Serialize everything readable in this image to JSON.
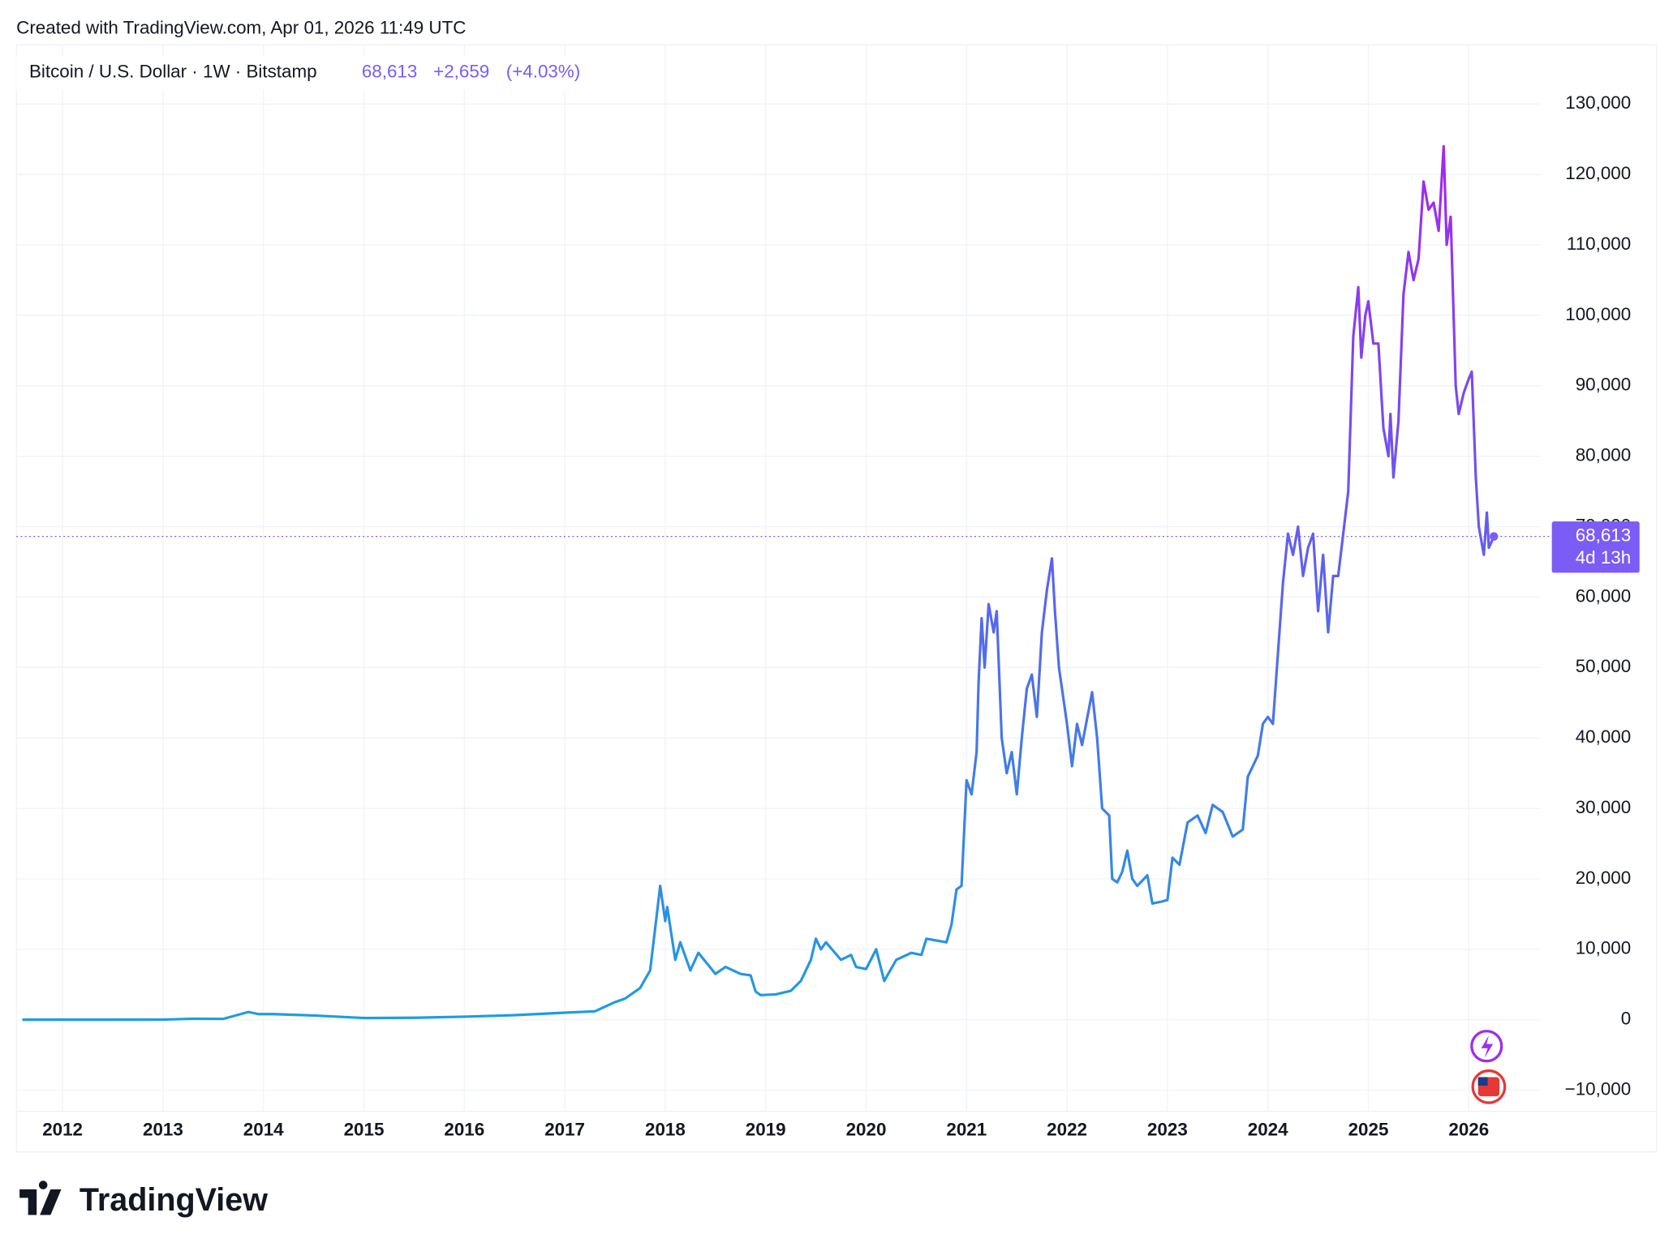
{
  "header": "Created with TradingView.com, Apr 01, 2026 11:49 UTC",
  "chart_data": {
    "type": "line",
    "title": "Bitcoin / U.S. Dollar · 1W · Bitstamp",
    "last_price": {
      "value": 68613,
      "label": "68,613"
    },
    "change": "+2,659",
    "change_percent": "(+4.03%)",
    "countdown": "4d 13h",
    "x": [
      2011.6,
      2012.0,
      2012.5,
      2013.0,
      2013.3,
      2013.6,
      2013.85,
      2013.95,
      2014.1,
      2014.5,
      2015.0,
      2015.5,
      2016.0,
      2016.5,
      2017.0,
      2017.3,
      2017.5,
      2017.6,
      2017.75,
      2017.85,
      2017.95,
      2018.0,
      2018.02,
      2018.1,
      2018.15,
      2018.25,
      2018.33,
      2018.5,
      2018.6,
      2018.75,
      2018.85,
      2018.9,
      2018.95,
      2019.1,
      2019.25,
      2019.35,
      2019.45,
      2019.5,
      2019.55,
      2019.6,
      2019.75,
      2019.85,
      2019.9,
      2020.0,
      2020.1,
      2020.18,
      2020.3,
      2020.45,
      2020.55,
      2020.6,
      2020.8,
      2020.85,
      2020.9,
      2020.95,
      2021.0,
      2021.05,
      2021.1,
      2021.12,
      2021.15,
      2021.18,
      2021.22,
      2021.27,
      2021.3,
      2021.35,
      2021.4,
      2021.45,
      2021.5,
      2021.55,
      2021.6,
      2021.65,
      2021.7,
      2021.75,
      2021.8,
      2021.85,
      2021.88,
      2021.92,
      2021.95,
      2022.0,
      2022.05,
      2022.1,
      2022.15,
      2022.25,
      2022.3,
      2022.35,
      2022.42,
      2022.45,
      2022.5,
      2022.55,
      2022.6,
      2022.65,
      2022.7,
      2022.8,
      2022.85,
      2022.95,
      2023.0,
      2023.05,
      2023.12,
      2023.2,
      2023.3,
      2023.38,
      2023.45,
      2023.55,
      2023.65,
      2023.75,
      2023.8,
      2023.9,
      2023.95,
      2024.0,
      2024.05,
      2024.1,
      2024.15,
      2024.2,
      2024.25,
      2024.3,
      2024.35,
      2024.4,
      2024.45,
      2024.5,
      2024.55,
      2024.6,
      2024.65,
      2024.7,
      2024.75,
      2024.8,
      2024.85,
      2024.9,
      2024.93,
      2024.97,
      2025.0,
      2025.05,
      2025.1,
      2025.15,
      2025.2,
      2025.22,
      2025.25,
      2025.3,
      2025.35,
      2025.4,
      2025.45,
      2025.5,
      2025.55,
      2025.6,
      2025.65,
      2025.7,
      2025.75,
      2025.78,
      2025.82,
      2025.87,
      2025.9,
      2025.95,
      2026.0,
      2026.03,
      2026.07,
      2026.1,
      2026.15,
      2026.18,
      2026.2,
      2026.25
    ],
    "series": [
      {
        "name": "Bitcoin / U.S. Dollar",
        "colors": [
          "#1e9de0",
          "#5c63ef",
          "#a526f0"
        ],
        "values": [
          5,
          5,
          7,
          13,
          140,
          120,
          1100,
          800,
          800,
          600,
          250,
          280,
          430,
          650,
          1000,
          1200,
          2500,
          3000,
          4500,
          7000,
          19000,
          14000,
          16000,
          8500,
          11000,
          7000,
          9500,
          6500,
          7500,
          6500,
          6300,
          4000,
          3500,
          3600,
          4100,
          5500,
          8500,
          11500,
          10000,
          11000,
          8500,
          9200,
          7500,
          7200,
          10000,
          5500,
          8500,
          9500,
          9200,
          11500,
          11000,
          13500,
          18500,
          19000,
          34000,
          32000,
          38000,
          48000,
          57000,
          50000,
          59000,
          55000,
          58000,
          40000,
          35000,
          38000,
          32000,
          40000,
          47000,
          49000,
          43000,
          55000,
          61000,
          65500,
          58000,
          50000,
          47000,
          42000,
          36000,
          42000,
          39000,
          46500,
          40000,
          30000,
          29000,
          20000,
          19500,
          21000,
          24000,
          20000,
          19000,
          20500,
          16500,
          16800,
          17000,
          23000,
          22000,
          28000,
          29000,
          26500,
          30500,
          29500,
          26000,
          27000,
          34500,
          37500,
          42000,
          43000,
          42000,
          52000,
          62000,
          69000,
          66000,
          70000,
          63000,
          67000,
          69000,
          58000,
          66000,
          55000,
          63000,
          63000,
          69000,
          75000,
          97000,
          104000,
          94000,
          100000,
          102000,
          96000,
          96000,
          84000,
          80000,
          86000,
          77000,
          85000,
          103000,
          109000,
          105000,
          108000,
          119000,
          115000,
          116000,
          112000,
          124000,
          110000,
          114000,
          90000,
          86000,
          89000,
          91000,
          92000,
          77000,
          70000,
          66000,
          72000,
          67000,
          68613
        ]
      }
    ],
    "xlim": [
      2011.54,
      2026.71
    ],
    "xticks": [
      2012,
      2013,
      2014,
      2015,
      2016,
      2017,
      2018,
      2019,
      2020,
      2021,
      2022,
      2023,
      2024,
      2025,
      2026
    ],
    "ylim": [
      -13000,
      138400
    ],
    "yticks": [
      {
        "value": -10000,
        "label": "−10,000"
      },
      0,
      {
        "value": 10000,
        "label": "10,000"
      },
      {
        "value": 20000,
        "label": "20,000"
      },
      {
        "value": 30000,
        "label": "30,000"
      },
      {
        "value": 40000,
        "label": "40,000"
      },
      {
        "value": 50000,
        "label": "50,000"
      },
      {
        "value": 60000,
        "label": "60,000"
      },
      {
        "value": 70000,
        "label": "70,000"
      },
      {
        "value": 80000,
        "label": "80,000"
      },
      {
        "value": 90000,
        "label": "90,000"
      },
      {
        "value": 100000,
        "label": "100,000"
      },
      {
        "value": 110000,
        "label": "110,000"
      },
      {
        "value": 120000,
        "label": "120,000"
      },
      {
        "value": 130000,
        "label": "130,000"
      }
    ],
    "grid": true,
    "price_color": "#7b5cf5"
  },
  "logo": "TradingView"
}
